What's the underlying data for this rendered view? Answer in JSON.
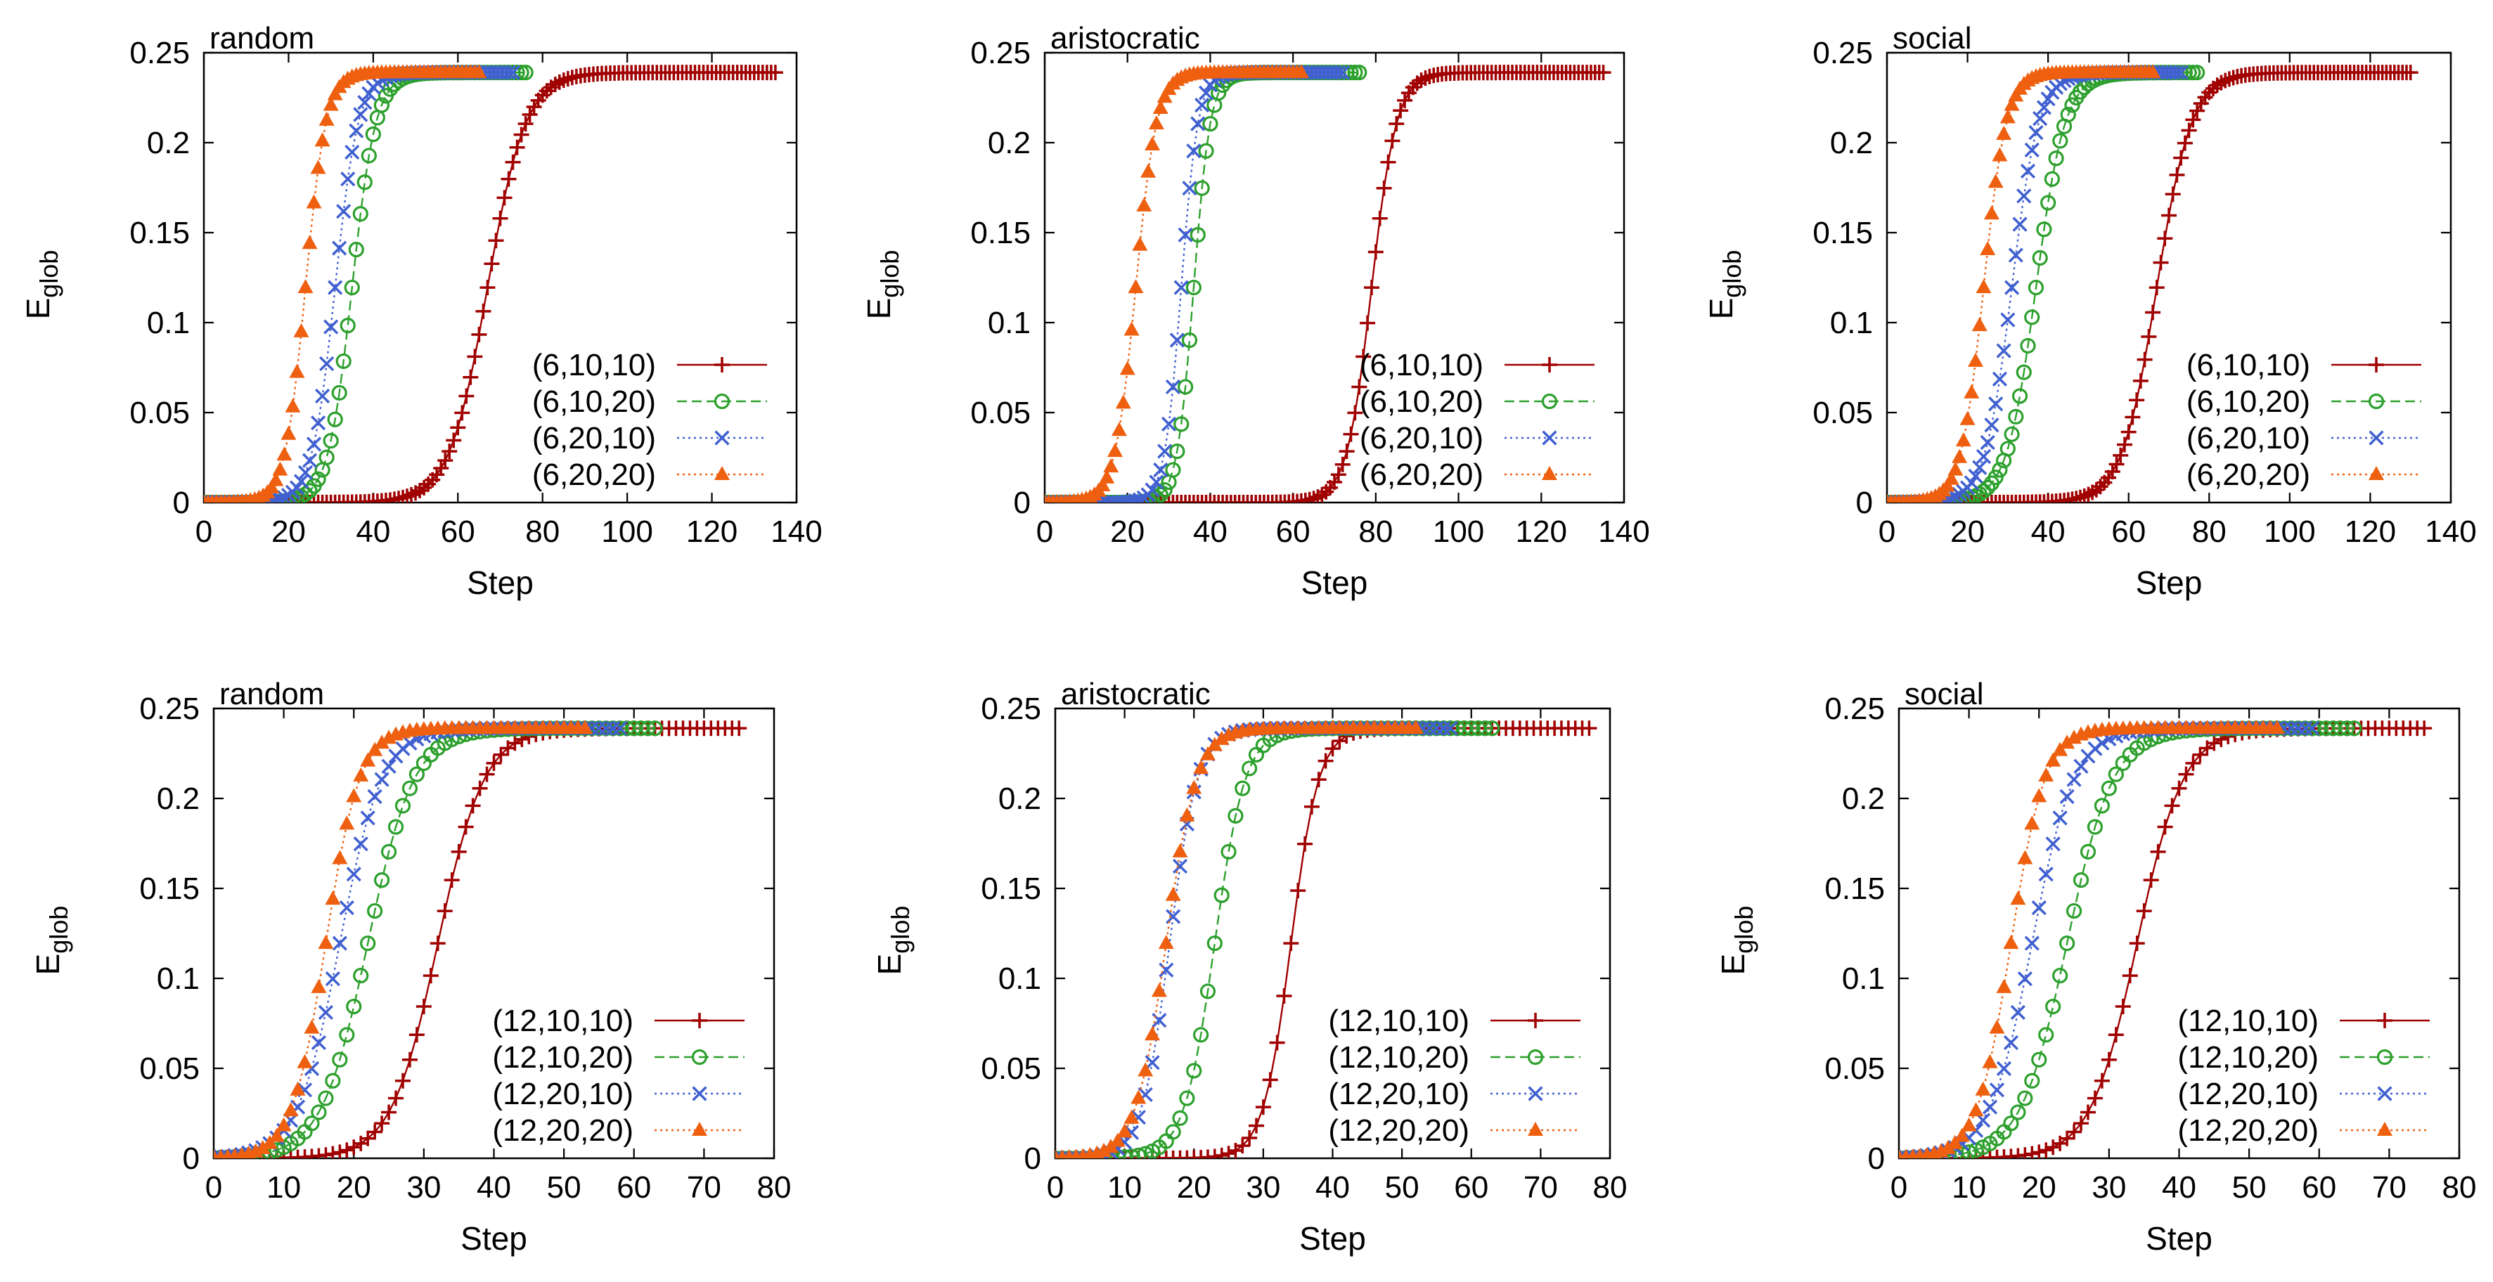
{
  "chart_data": [
    {
      "type": "line",
      "title": "random",
      "xlabel": "Step",
      "ylabel": "E",
      "ylabel_sub": "glob",
      "xlim": [
        0,
        140
      ],
      "ylim": [
        0,
        0.25
      ],
      "xticks": [
        "0",
        "20",
        "40",
        "60",
        "80",
        "100",
        "120",
        "140"
      ],
      "yticks": [
        "0",
        "0.05",
        "0.1",
        "0.15",
        "0.2",
        "0.25"
      ],
      "legend_position": "bottom-right",
      "series": [
        {
          "name": "(6,10,10)",
          "color": "#a00000",
          "marker": "plus",
          "dash": "solid",
          "max_step": 135,
          "midpoint": 67,
          "width": 4.5
        },
        {
          "name": "(6,10,20)",
          "color": "#2ca02c",
          "marker": "circle",
          "dash": "dashed",
          "max_step": 76,
          "midpoint": 35,
          "width": 2.8
        },
        {
          "name": "(6,20,10)",
          "color": "#4060d0",
          "marker": "x",
          "dash": "dotted",
          "max_step": 73,
          "midpoint": 31,
          "width": 2.7
        },
        {
          "name": "(6,20,20)",
          "color": "#ee6010",
          "marker": "triangle",
          "dash": "dotted",
          "max_step": 65,
          "midpoint": 24,
          "width": 2.4
        }
      ]
    },
    {
      "type": "line",
      "title": "aristocratic",
      "xlabel": "Step",
      "ylabel": "E",
      "ylabel_sub": "glob",
      "xlim": [
        0,
        140
      ],
      "ylim": [
        0,
        0.25
      ],
      "xticks": [
        "0",
        "20",
        "40",
        "60",
        "80",
        "100",
        "120",
        "140"
      ],
      "yticks": [
        "0",
        "0.05",
        "0.1",
        "0.15",
        "0.2",
        "0.25"
      ],
      "legend_position": "bottom-right",
      "series": [
        {
          "name": "(6,10,10)",
          "color": "#a00000",
          "marker": "plus",
          "dash": "solid",
          "max_step": 135,
          "midpoint": 79,
          "width": 3.0
        },
        {
          "name": "(6,10,20)",
          "color": "#2ca02c",
          "marker": "circle",
          "dash": "dashed",
          "max_step": 76,
          "midpoint": 36,
          "width": 2.0
        },
        {
          "name": "(6,20,10)",
          "color": "#4060d0",
          "marker": "x",
          "dash": "dotted",
          "max_step": 72,
          "midpoint": 33,
          "width": 2.0
        },
        {
          "name": "(6,20,20)",
          "color": "#ee6010",
          "marker": "triangle",
          "dash": "dotted",
          "max_step": 62,
          "midpoint": 22,
          "width": 2.5
        }
      ]
    },
    {
      "type": "line",
      "title": "social",
      "xlabel": "Step",
      "ylabel": "E",
      "ylabel_sub": "glob",
      "xlim": [
        0,
        140
      ],
      "ylim": [
        0,
        0.25
      ],
      "xticks": [
        "0",
        "20",
        "40",
        "60",
        "80",
        "100",
        "120",
        "140"
      ],
      "yticks": [
        "0",
        "0.05",
        "0.1",
        "0.15",
        "0.2",
        "0.25"
      ],
      "legend_position": "bottom-right",
      "series": [
        {
          "name": "(6,10,10)",
          "color": "#a00000",
          "marker": "plus",
          "dash": "solid",
          "max_step": 130,
          "midpoint": 67,
          "width": 4.3
        },
        {
          "name": "(6,10,20)",
          "color": "#2ca02c",
          "marker": "circle",
          "dash": "dashed",
          "max_step": 77,
          "midpoint": 37,
          "width": 3.6
        },
        {
          "name": "(6,20,10)",
          "color": "#4060d0",
          "marker": "x",
          "dash": "dotted",
          "max_step": 73,
          "midpoint": 31,
          "width": 3.3
        },
        {
          "name": "(6,20,20)",
          "color": "#ee6010",
          "marker": "triangle",
          "dash": "dotted",
          "max_step": 66,
          "midpoint": 24,
          "width": 2.8
        }
      ]
    },
    {
      "type": "line",
      "title": "random",
      "xlabel": "Step",
      "ylabel": "E",
      "ylabel_sub": "glob",
      "xlim": [
        0,
        80
      ],
      "ylim": [
        0,
        0.25
      ],
      "xticks": [
        "0",
        "10",
        "20",
        "30",
        "40",
        "50",
        "60",
        "70",
        "80"
      ],
      "yticks": [
        "0",
        "0.05",
        "0.1",
        "0.15",
        "0.2",
        "0.25"
      ],
      "legend_position": "bottom-right",
      "series": [
        {
          "name": "(12,10,10)",
          "color": "#a00000",
          "marker": "plus",
          "dash": "solid",
          "max_step": 75,
          "midpoint": 32,
          "width": 3.3
        },
        {
          "name": "(12,10,20)",
          "color": "#2ca02c",
          "marker": "circle",
          "dash": "dashed",
          "max_step": 63,
          "midpoint": 22,
          "width": 3.3
        },
        {
          "name": "(12,20,10)",
          "color": "#4060d0",
          "marker": "x",
          "dash": "dotted",
          "max_step": 58,
          "midpoint": 18,
          "width": 3.0
        },
        {
          "name": "(12,20,20)",
          "color": "#ee6010",
          "marker": "triangle",
          "dash": "dotted",
          "max_step": 53,
          "midpoint": 16,
          "width": 2.4
        }
      ]
    },
    {
      "type": "line",
      "title": "aristocratic",
      "xlabel": "Step",
      "ylabel": "E",
      "ylabel_sub": "glob",
      "xlim": [
        0,
        80
      ],
      "ylim": [
        0,
        0.25
      ],
      "xticks": [
        "0",
        "10",
        "20",
        "30",
        "40",
        "50",
        "60",
        "70",
        "80"
      ],
      "yticks": [
        "0",
        "0.05",
        "0.1",
        "0.15",
        "0.2",
        "0.25"
      ],
      "legend_position": "bottom-right",
      "series": [
        {
          "name": "(12,10,10)",
          "color": "#a00000",
          "marker": "plus",
          "dash": "solid",
          "max_step": 77,
          "midpoint": 34,
          "width": 2.0
        },
        {
          "name": "(12,10,20)",
          "color": "#2ca02c",
          "marker": "circle",
          "dash": "dashed",
          "max_step": 63,
          "midpoint": 23,
          "width": 2.2
        },
        {
          "name": "(12,20,10)",
          "color": "#4060d0",
          "marker": "x",
          "dash": "dotted",
          "max_step": 57,
          "midpoint": 16.5,
          "width": 2.0
        },
        {
          "name": "(12,20,20)",
          "color": "#ee6010",
          "marker": "triangle",
          "dash": "dotted",
          "max_step": 52,
          "midpoint": 16,
          "width": 2.2
        }
      ]
    },
    {
      "type": "line",
      "title": "social",
      "xlabel": "Step",
      "ylabel": "E",
      "ylabel_sub": "glob",
      "xlim": [
        0,
        80
      ],
      "ylim": [
        0,
        0.25
      ],
      "xticks": [
        "0",
        "10",
        "20",
        "30",
        "40",
        "50",
        "60",
        "70",
        "80"
      ],
      "yticks": [
        "0",
        "0.05",
        "0.1",
        "0.15",
        "0.2",
        "0.25"
      ],
      "legend_position": "bottom-right",
      "series": [
        {
          "name": "(12,10,10)",
          "color": "#a00000",
          "marker": "plus",
          "dash": "solid",
          "max_step": 75,
          "midpoint": 34,
          "width": 3.3
        },
        {
          "name": "(12,10,20)",
          "color": "#2ca02c",
          "marker": "circle",
          "dash": "dashed",
          "max_step": 65,
          "midpoint": 24,
          "width": 3.3
        },
        {
          "name": "(12,20,10)",
          "color": "#4060d0",
          "marker": "x",
          "dash": "dotted",
          "max_step": 59,
          "midpoint": 19,
          "width": 3.0
        },
        {
          "name": "(12,20,20)",
          "color": "#ee6010",
          "marker": "triangle",
          "dash": "dotted",
          "max_step": 54,
          "midpoint": 16,
          "width": 2.4
        }
      ]
    }
  ]
}
